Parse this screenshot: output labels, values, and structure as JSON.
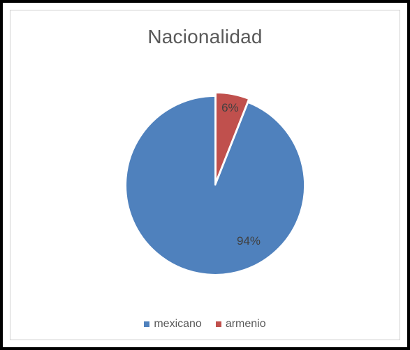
{
  "chart_data": {
    "type": "pie",
    "title": "Nacionalidad",
    "slices": [
      {
        "name": "mexicano",
        "value": 94,
        "label": "94%",
        "color": "#4F81BD"
      },
      {
        "name": "armenio",
        "value": 6,
        "label": "6%",
        "color": "#C0504D"
      }
    ],
    "legend": {
      "position": "bottom",
      "items": [
        {
          "label": "mexicano",
          "color": "#4F81BD"
        },
        {
          "label": "armenio",
          "color": "#C0504D"
        }
      ]
    }
  }
}
